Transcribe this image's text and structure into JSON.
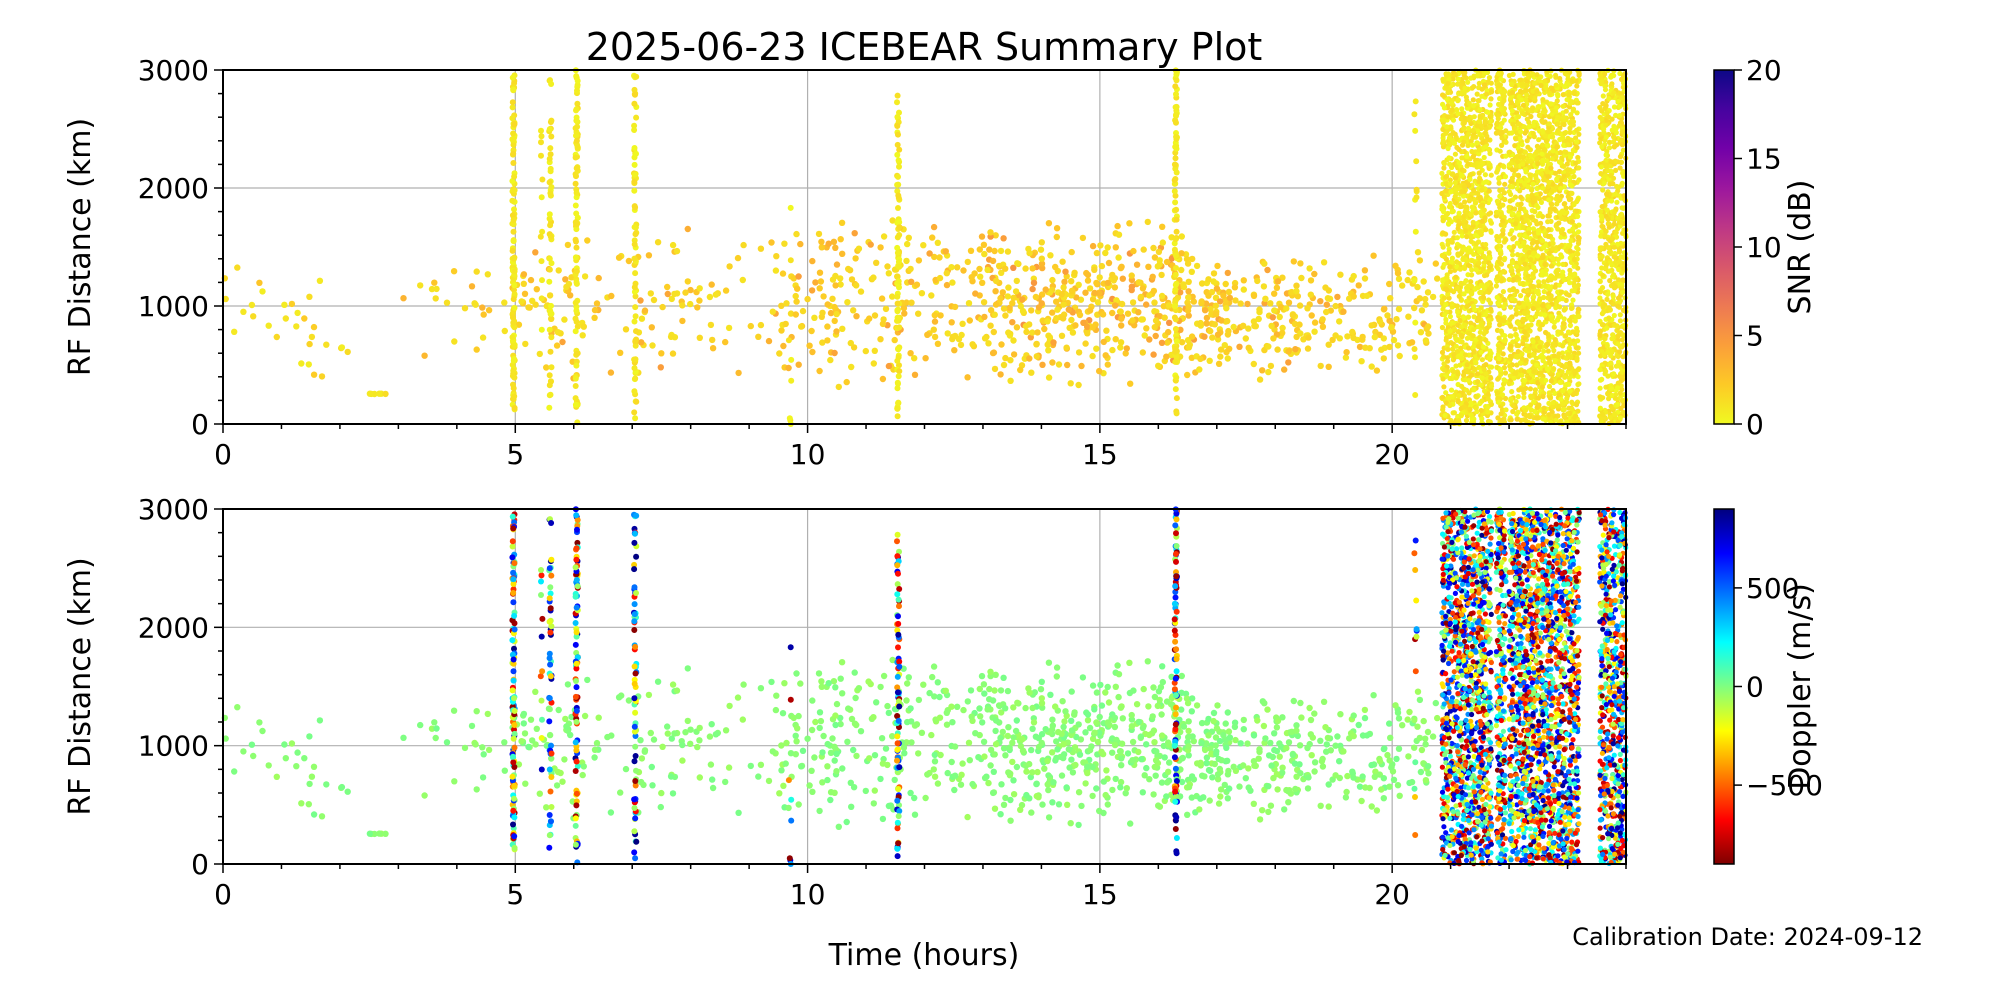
{
  "chart_data": {
    "type": "scatter",
    "title": "2025-06-23 ICEBEAR Summary Plot",
    "xlabel": "Time (hours)",
    "footer": "Calibration Date: 2024-09-12",
    "xlim": [
      0,
      24
    ],
    "xticks": [
      "0",
      "5",
      "10",
      "15",
      "20"
    ],
    "xtick_values": [
      0,
      5,
      10,
      15,
      20
    ],
    "grid": true,
    "panels": [
      {
        "name": "snr",
        "ylabel": "RF Distance (km)",
        "ylim": [
          0,
          3000
        ],
        "yticks": [
          "0",
          "1000",
          "2000",
          "3000"
        ],
        "ytick_values": [
          0,
          1000,
          2000,
          3000
        ],
        "color_by": "snr",
        "colorbar": {
          "label": "SNR (dB)",
          "range": [
            0,
            20
          ],
          "ticks": [
            "0",
            "5",
            "10",
            "15",
            "20"
          ],
          "tick_values": [
            0,
            5,
            10,
            15,
            20
          ],
          "colormap": "plasma_r",
          "stops": [
            "#f0f921",
            "#fdca26",
            "#fb9f3a",
            "#ed7953",
            "#d8576b",
            "#bd3786",
            "#9c179e",
            "#7201a8",
            "#46039f",
            "#0d0887"
          ]
        }
      },
      {
        "name": "doppler",
        "ylabel": "RF Distance (km)",
        "ylim": [
          0,
          3000
        ],
        "yticks": [
          "0",
          "1000",
          "2000",
          "3000"
        ],
        "ytick_values": [
          0,
          1000,
          2000,
          3000
        ],
        "color_by": "doppler",
        "colorbar": {
          "label": "Doppler (m/s)",
          "range": [
            -900,
            900
          ],
          "ticks": [
            "−500",
            "0",
            "500"
          ],
          "tick_values": [
            -500,
            0,
            500
          ],
          "colormap": "jet",
          "stops": [
            "#7f0000",
            "#ff0000",
            "#ff8000",
            "#ffff00",
            "#80ff80",
            "#00ffff",
            "#0080ff",
            "#0000ff",
            "#00007f"
          ]
        }
      }
    ],
    "scatter_clusters": [
      {
        "t": [
          0,
          2.2
        ],
        "r": [
          250,
          1500
        ],
        "n": 30,
        "snr": [
          0.5,
          3
        ]
      },
      {
        "t": [
          2.5,
          2.8
        ],
        "r": [
          250,
          260
        ],
        "n": 6,
        "snr": [
          0.5,
          2
        ]
      },
      {
        "t": [
          3,
          5
        ],
        "r": [
          400,
          1450
        ],
        "n": 25,
        "snr": [
          1,
          4
        ]
      },
      {
        "t": [
          5,
          10
        ],
        "r": [
          300,
          1700
        ],
        "n": 160,
        "snr": [
          1,
          5
        ]
      },
      {
        "t": [
          10,
          13
        ],
        "r": [
          300,
          1800
        ],
        "n": 190,
        "snr": [
          1,
          5
        ]
      },
      {
        "t": [
          13,
          16.5
        ],
        "r": [
          300,
          1750
        ],
        "n": 420,
        "snr": [
          1,
          6
        ]
      },
      {
        "t": [
          16.5,
          18.5
        ],
        "r": [
          350,
          1500
        ],
        "n": 190,
        "snr": [
          1,
          5
        ]
      },
      {
        "t": [
          18.5,
          20.8
        ],
        "r": [
          350,
          1500
        ],
        "n": 130,
        "snr": [
          1,
          4.5
        ]
      }
    ],
    "vertical_spikes": [
      {
        "t": 4.97,
        "r": [
          50,
          3000
        ],
        "n": 120
      },
      {
        "t": 5.45,
        "r": [
          250,
          3000
        ],
        "n": 12
      },
      {
        "t": 5.6,
        "r": [
          50,
          3000
        ],
        "n": 50
      },
      {
        "t": 6.05,
        "r": [
          0,
          3000
        ],
        "n": 90
      },
      {
        "t": 7.05,
        "r": [
          0,
          3000
        ],
        "n": 70
      },
      {
        "t": 9.7,
        "r": [
          0,
          2500
        ],
        "n": 8
      },
      {
        "t": 11.55,
        "r": [
          50,
          2800
        ],
        "n": 80
      },
      {
        "t": 16.3,
        "r": [
          50,
          3000
        ],
        "n": 90
      },
      {
        "t": 20.4,
        "r": [
          100,
          2950
        ],
        "n": 14
      }
    ],
    "dense_bands": [
      {
        "t": [
          20.85,
          21.7
        ]
      },
      {
        "t": [
          21.78,
          21.95
        ]
      },
      {
        "t": [
          22.0,
          23.2
        ]
      },
      {
        "t": [
          23.55,
          24.0
        ]
      }
    ]
  }
}
